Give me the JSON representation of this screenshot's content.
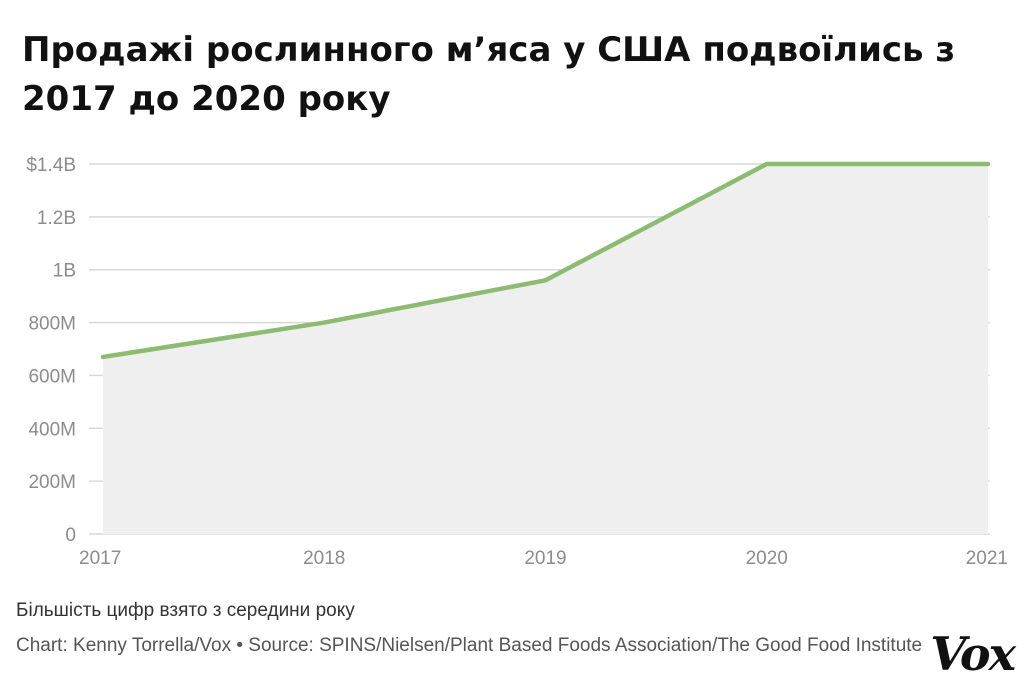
{
  "chart_data": {
    "type": "area",
    "title": "Продажі рослинного м’яса у США подвоїлись з 2017 до 2020 року",
    "x": [
      2017,
      2018,
      2019,
      2020,
      2021
    ],
    "x_tick_labels": [
      "2017",
      "2018",
      "2019",
      "2020",
      "2021"
    ],
    "series": [
      {
        "values": [
          670000000,
          800000000,
          960000000,
          1400000000,
          1400000000
        ]
      }
    ],
    "y_ticks": [
      0,
      200000000,
      400000000,
      600000000,
      800000000,
      1000000000,
      1200000000,
      1400000000
    ],
    "y_tick_labels": [
      "0",
      "200M",
      "400M",
      "600M",
      "800M",
      "1B",
      "1.2B",
      "$1.4B"
    ],
    "ylim": [
      0,
      1400000000
    ],
    "xlim": [
      2017,
      2021
    ],
    "grid": true,
    "xlabel": "",
    "ylabel": "",
    "note": "Більшість цифр взято з середини року",
    "credit": "Chart: Kenny Torrella/Vox • Source: SPINS/Nielsen/Plant Based Foods Association/The Good Food Institute",
    "logo_text": "Vox",
    "colors": {
      "line": "#8dbb72",
      "area": "#efefef",
      "grid": "#d9d9d9",
      "tick_text": "#8c8c8c"
    }
  }
}
